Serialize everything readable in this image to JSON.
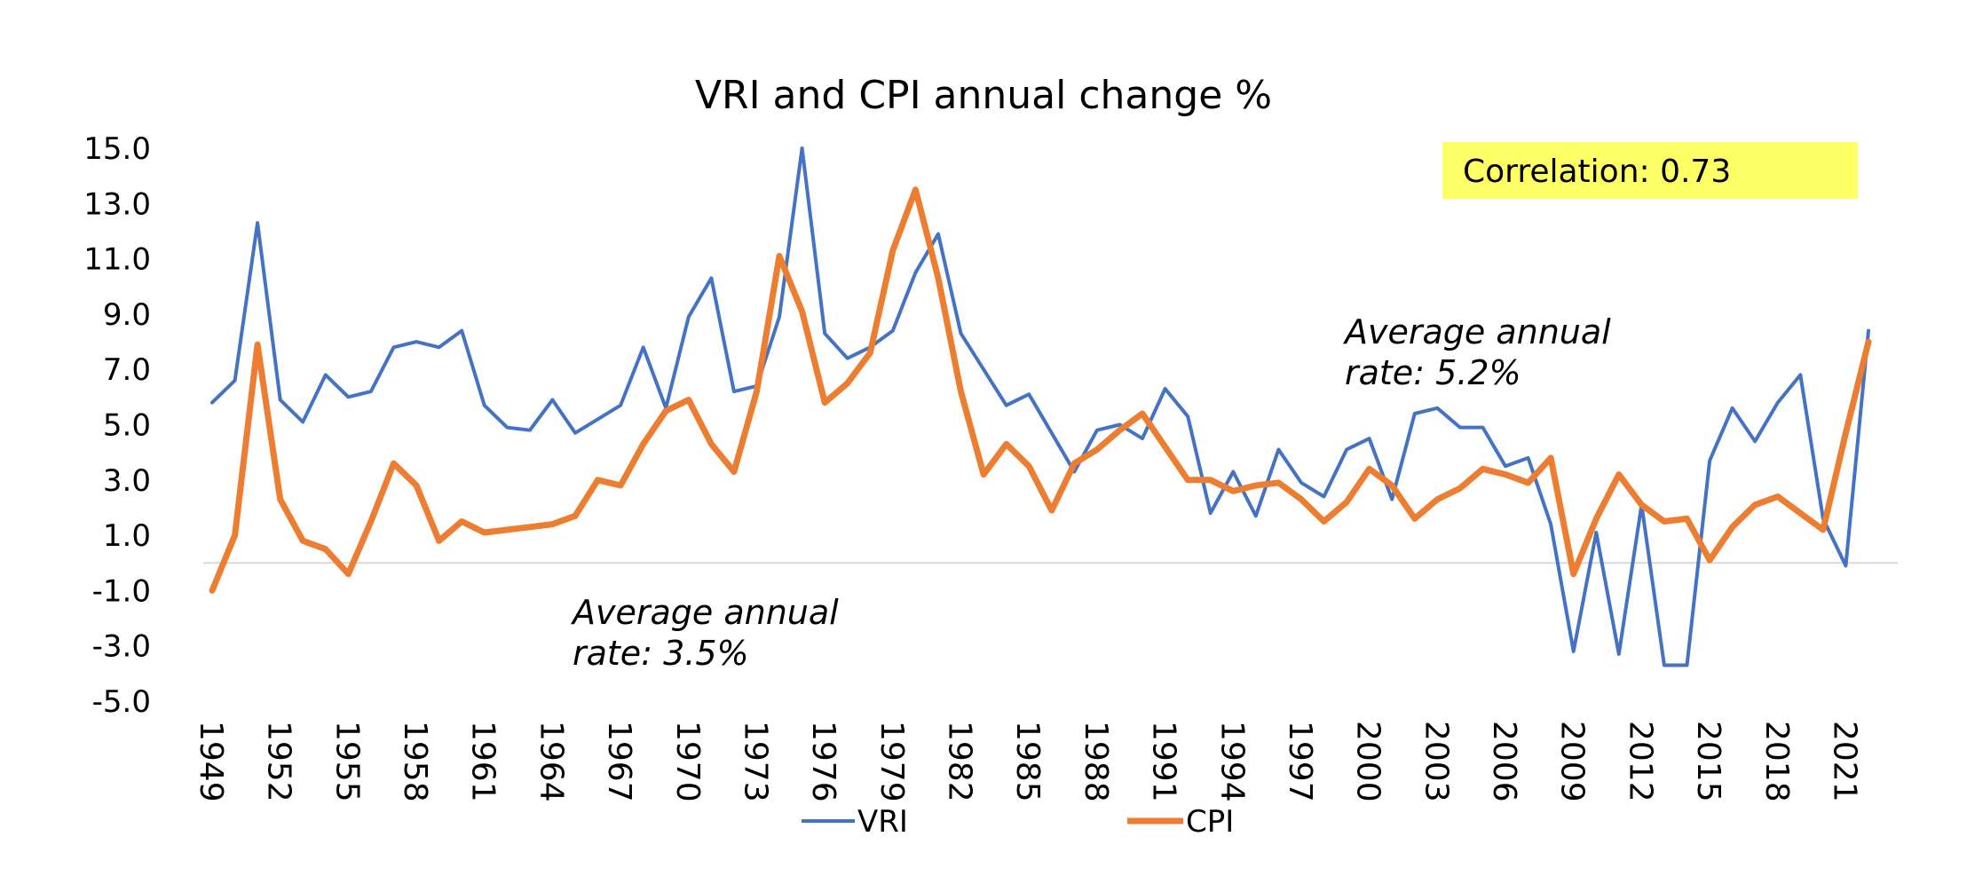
{
  "chart_data": {
    "type": "line",
    "title": "VRI  and CPI annual change %",
    "xlabel": "",
    "ylabel": "",
    "ylim": [
      -5.0,
      15.0
    ],
    "yticks": [
      "15.0",
      "13.0",
      "11.0",
      "9.0",
      "7.0",
      "5.0",
      "3.0",
      "1.0",
      "-1.0",
      "-3.0",
      "-5.0"
    ],
    "x_start": 1949,
    "x_end": 2022,
    "xtick_labels": [
      "1949",
      "1952",
      "1955",
      "1958",
      "1961",
      "1964",
      "1967",
      "1970",
      "1973",
      "1976",
      "1979",
      "1982",
      "1985",
      "1988",
      "1991",
      "1994",
      "1997",
      "2000",
      "2003",
      "2006",
      "2009",
      "2012",
      "2015",
      "2018",
      "2021"
    ],
    "legend": "bottom",
    "grid": false,
    "series": [
      {
        "name": "VRI",
        "color": "#4472C4",
        "values": [
          5.8,
          6.6,
          12.3,
          5.9,
          5.1,
          6.8,
          6.0,
          6.2,
          7.8,
          8.0,
          7.8,
          8.4,
          5.7,
          4.9,
          4.8,
          5.9,
          4.7,
          5.2,
          5.7,
          7.8,
          5.6,
          8.9,
          10.3,
          6.2,
          6.4,
          8.9,
          15.0,
          8.3,
          7.4,
          7.8,
          8.4,
          10.5,
          11.9,
          8.3,
          7.0,
          5.7,
          6.1,
          4.7,
          3.3,
          4.8,
          5.0,
          4.5,
          6.3,
          5.3,
          1.8,
          3.3,
          1.7,
          4.1,
          2.9,
          2.4,
          4.1,
          4.5,
          2.3,
          5.4,
          5.6,
          4.9,
          4.9,
          3.5,
          3.8,
          1.4,
          -3.2,
          1.1,
          -3.3,
          2.1,
          -3.7,
          -3.7,
          3.7,
          5.6,
          4.4,
          5.8,
          6.8,
          1.6,
          -0.1,
          8.4
        ]
      },
      {
        "name": "CPI",
        "color": "#ED7D31",
        "values": [
          -1.0,
          1.0,
          7.9,
          2.3,
          0.8,
          0.5,
          -0.4,
          1.5,
          3.6,
          2.8,
          0.8,
          1.5,
          1.1,
          1.2,
          1.3,
          1.4,
          1.7,
          3.0,
          2.8,
          4.3,
          5.5,
          5.9,
          4.3,
          3.3,
          6.2,
          11.1,
          9.1,
          5.8,
          6.5,
          7.6,
          11.3,
          13.5,
          10.3,
          6.2,
          3.2,
          4.3,
          3.5,
          1.9,
          3.6,
          4.1,
          4.8,
          5.4,
          4.2,
          3.0,
          3.0,
          2.6,
          2.8,
          2.9,
          2.3,
          1.5,
          2.2,
          3.4,
          2.8,
          1.6,
          2.3,
          2.7,
          3.4,
          3.2,
          2.9,
          3.8,
          -0.4,
          1.6,
          3.2,
          2.1,
          1.5,
          1.6,
          0.1,
          1.3,
          2.1,
          2.4,
          1.8,
          1.2,
          4.7,
          8.0
        ]
      }
    ],
    "annotations": {
      "cpi_average_line1": "Average annual",
      "cpi_average_line2": "rate: 3.5%",
      "vri_average_line1": "Average annual",
      "vri_average_line2": "rate: 5.2%",
      "correlation": "Correlation: 0.73",
      "correlation_bg": "#FFFF66"
    }
  }
}
